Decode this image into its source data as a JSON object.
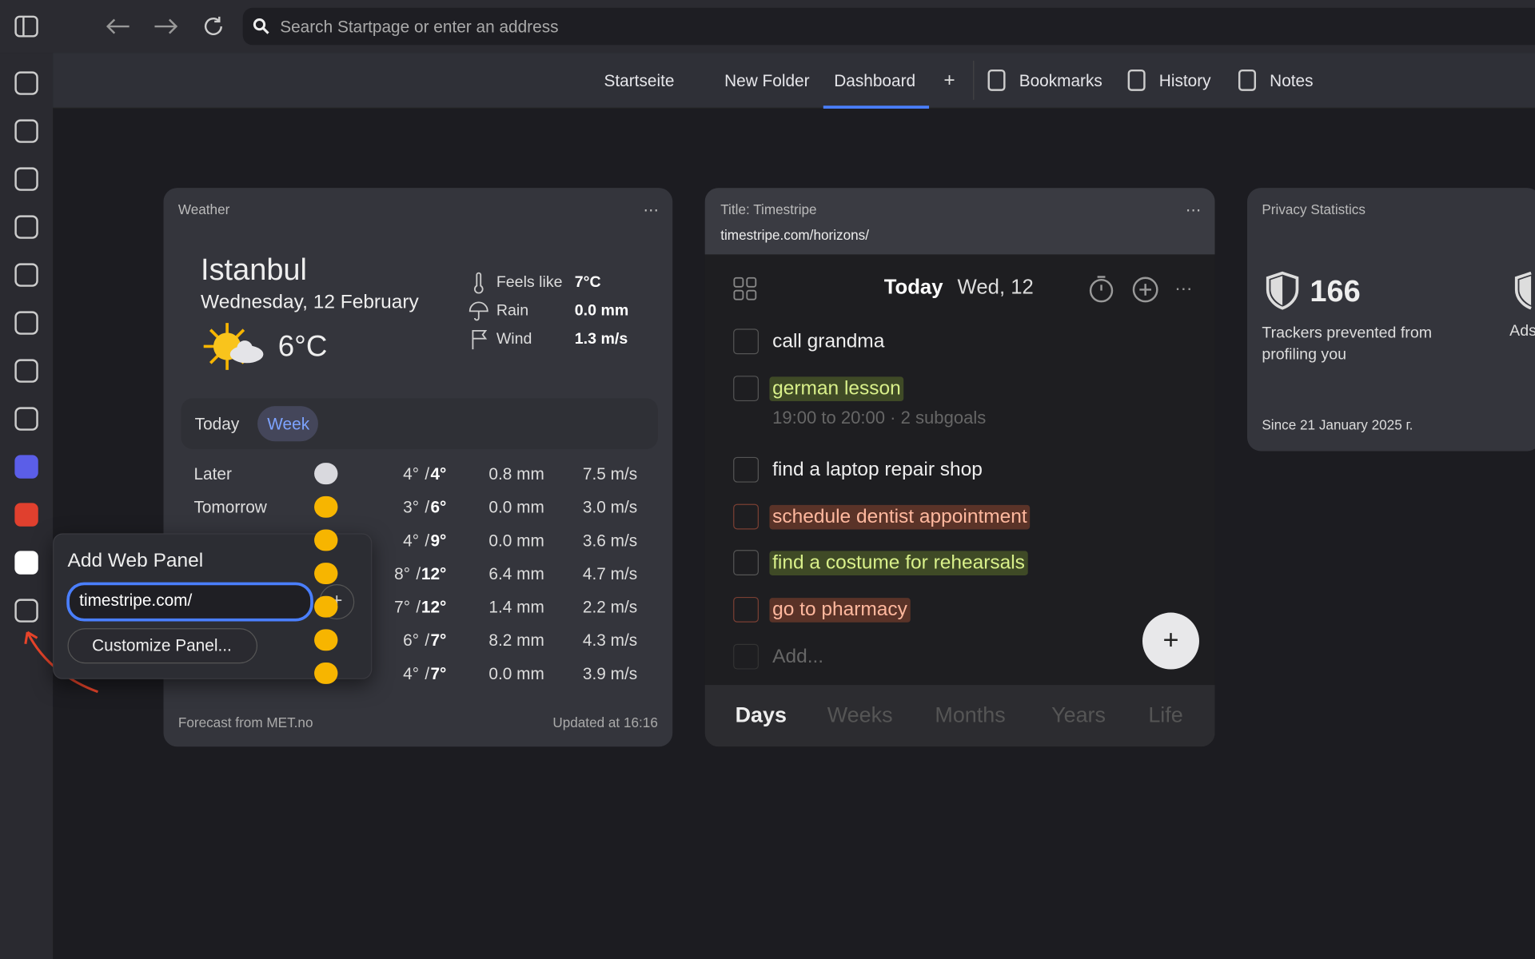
{
  "toolbar": {
    "search_placeholder": "Search Startpage or enter an address"
  },
  "tabs": [
    "Startseite",
    "New Folder",
    "Dashboard"
  ],
  "panels": [
    "Bookmarks",
    "History",
    "Notes"
  ],
  "weather": {
    "title": "Weather",
    "city": "Istanbul",
    "date": "Wednesday, 12 February",
    "temperature": "6°C",
    "details": [
      {
        "label": "Feels like",
        "value": "7°C"
      },
      {
        "label": "Rain",
        "value": "0.0 mm"
      },
      {
        "label": "Wind",
        "value": "1.3 m/s"
      }
    ],
    "toggle": [
      "Today",
      "Week"
    ],
    "forecast": [
      {
        "day": "Later",
        "low": "4°",
        "high": "4°",
        "rain": "0.8 mm",
        "wind": "7.5 m/s"
      },
      {
        "day": "Tomorrow",
        "low": "3°",
        "high": "6°",
        "rain": "0.0 mm",
        "wind": "3.0 m/s"
      },
      {
        "low": "4°",
        "high": "9°",
        "rain": "0.0 mm",
        "wind": "3.6 m/s"
      },
      {
        "low": "8°",
        "high": "12°",
        "rain": "6.4 mm",
        "wind": "4.7 m/s"
      },
      {
        "low": "7°",
        "high": "12°",
        "rain": "1.4 mm",
        "wind": "2.2 m/s"
      },
      {
        "low": "6°",
        "high": "7°",
        "rain": "8.2 mm",
        "wind": "4.3 m/s"
      },
      {
        "low": "4°",
        "high": "7°",
        "rain": "0.0 mm",
        "wind": "3.9 m/s"
      }
    ],
    "source": "Forecast from MET.no",
    "updated": "Updated at 16:16"
  },
  "timestripe": {
    "title": "Title: Timestripe",
    "url": "timestripe.com/horizons/",
    "heading": "Today",
    "date": "Wed, 12",
    "tasks": [
      {
        "text": "call grandma"
      },
      {
        "text": "german lesson",
        "highlight": "#3f4a26",
        "detail": "19:00 to 20:00 · 2 subgoals"
      },
      {
        "text": "find a laptop repair shop"
      },
      {
        "text": "schedule dentist appointment",
        "highlight": "#5a3328"
      },
      {
        "text": "find a costume for rehearsals",
        "highlight": "#3f4a26"
      },
      {
        "text": "go to pharmacy",
        "highlight": "#5a3328"
      }
    ],
    "add_placeholder": "Add...",
    "views": [
      "Days",
      "Weeks",
      "Months",
      "Years",
      "Life"
    ]
  },
  "privacy": {
    "title": "Privacy Statistics",
    "trackers": 166,
    "trackers_label": "Trackers prevented from profiling you",
    "ads_label": "Ads",
    "since": "Since 21 January 2025 г."
  },
  "popup": {
    "title": "Add Web Panel",
    "input": "timestripe.com/",
    "button": "Customize Panel..."
  }
}
